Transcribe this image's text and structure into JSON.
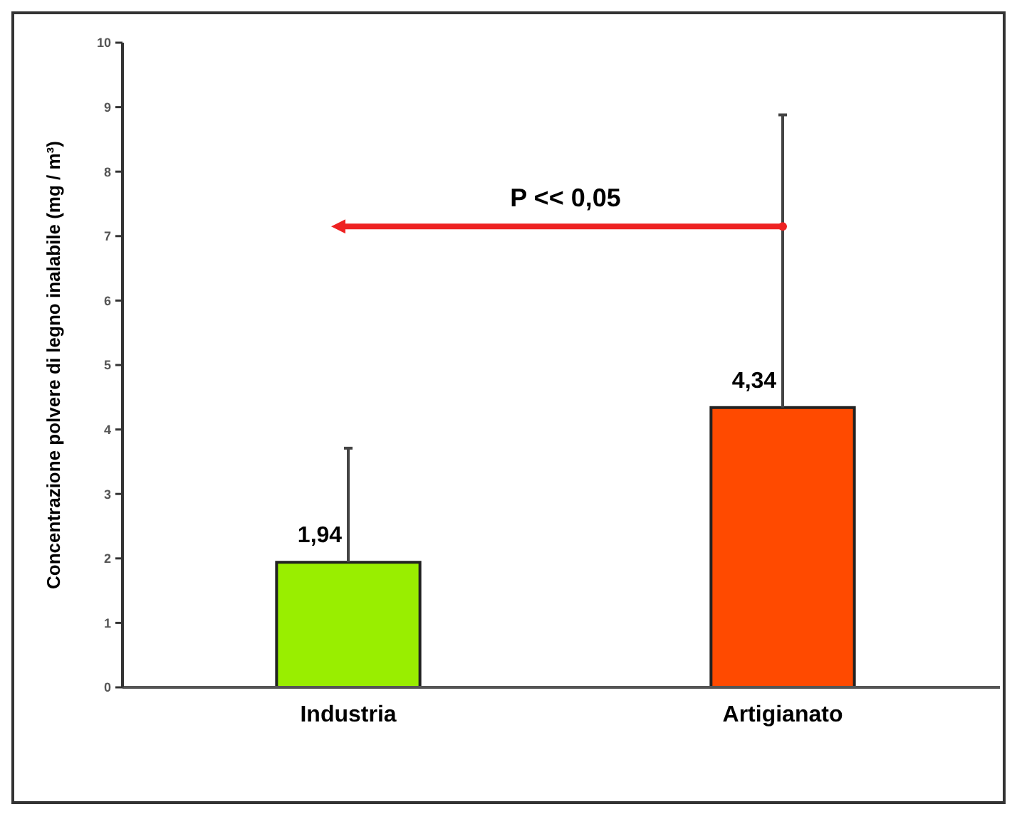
{
  "chart_data": {
    "type": "bar",
    "ylabel": "Concentrazione polvere di legno inalabile (mg / m³)",
    "categories": [
      "Industria",
      "Artigianato"
    ],
    "values": [
      1.94,
      4.34
    ],
    "colors": [
      "#99ee00",
      "#ff4a00"
    ],
    "errors": [
      [
        1.94,
        3.71
      ],
      [
        4.34,
        8.88
      ]
    ],
    "value_labels": [
      "1,94",
      "4,34"
    ],
    "ylim": [
      0,
      10
    ],
    "yticks": [
      0,
      1,
      2,
      3,
      4,
      5,
      6,
      7,
      8,
      9,
      10
    ],
    "grid": false,
    "annotations": [
      "P << 0,05"
    ]
  }
}
